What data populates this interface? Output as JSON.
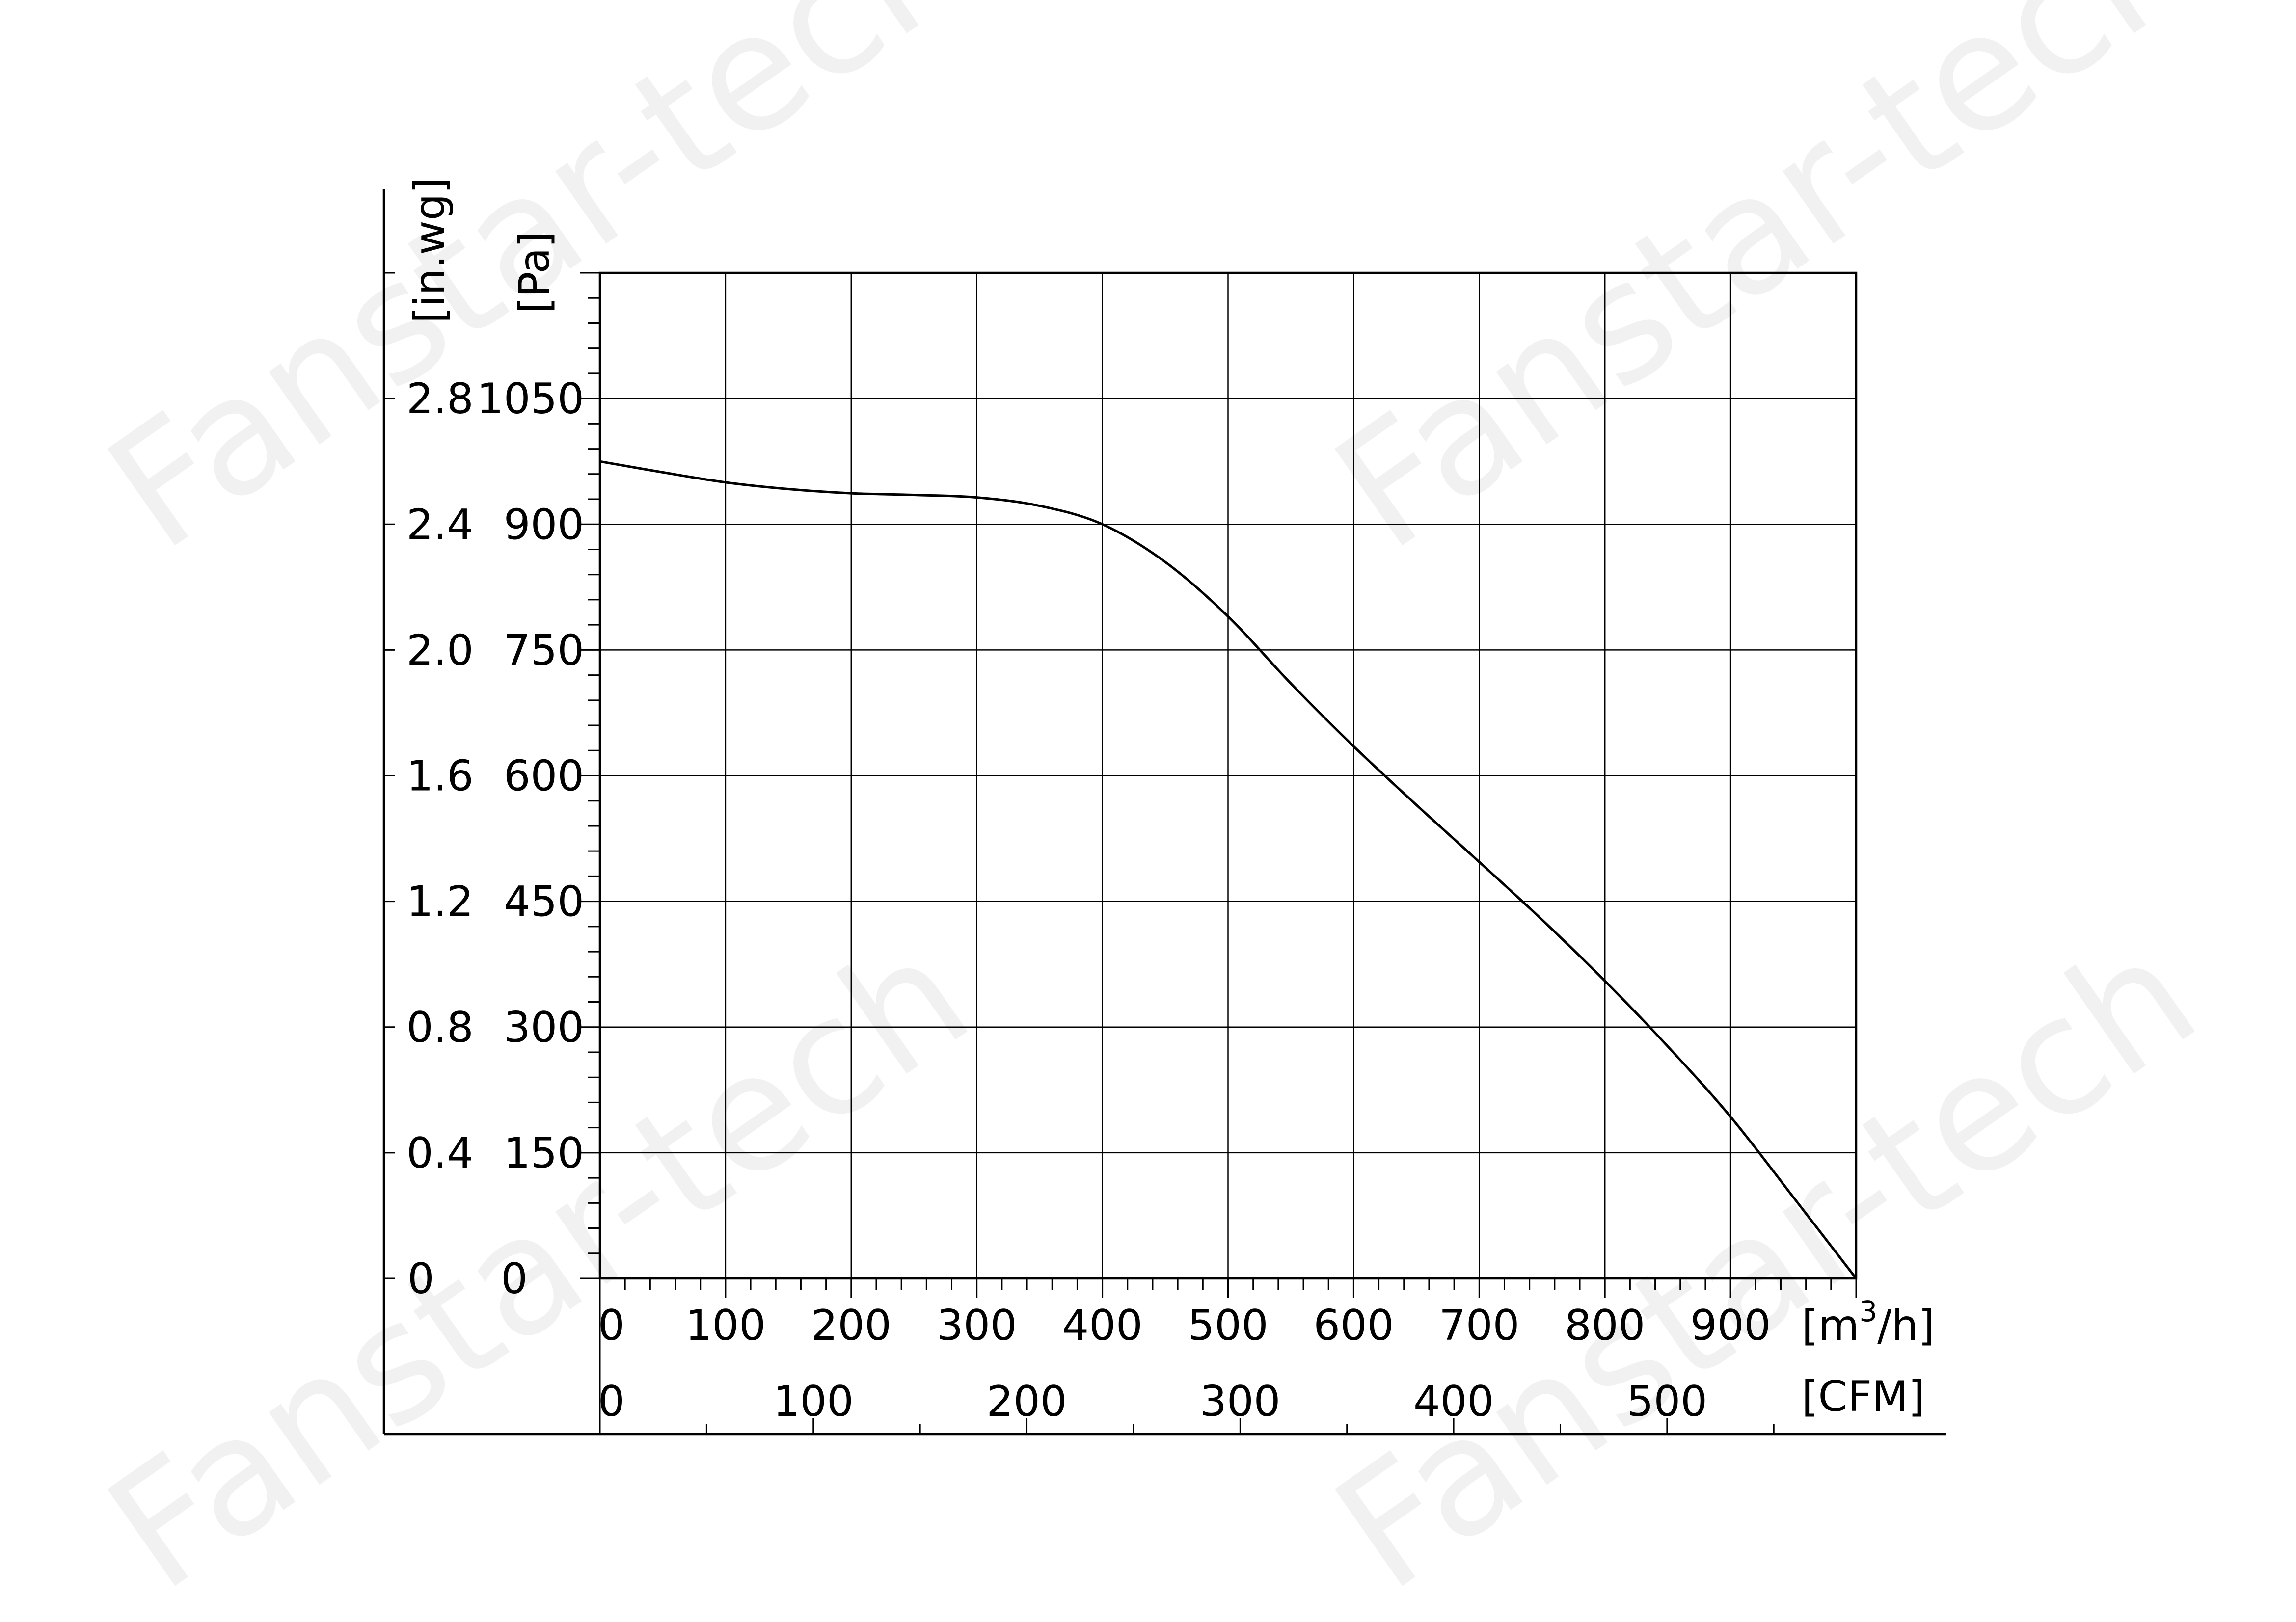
{
  "watermark": "Fanstar-tech",
  "chart_data": {
    "type": "line",
    "title": "",
    "x_unit_primary": "[m³/h]",
    "x_unit_primary_parts": {
      "base": "[m",
      "sup": "3",
      "tail": "/h]"
    },
    "x_unit_secondary": "[CFM]",
    "y_unit_primary": "[Pa]",
    "y_unit_secondary": "[in.wg]",
    "xlim": [
      0,
      1000
    ],
    "ylim": [
      0,
      1200
    ],
    "grid": true,
    "x_ticks_m3h": [
      "0",
      "100",
      "200",
      "300",
      "400",
      "500",
      "600",
      "700",
      "800",
      "900"
    ],
    "x_ticks_cfm": [
      "0",
      "100",
      "200",
      "300",
      "400",
      "500"
    ],
    "y_ticks_pa": [
      "0",
      "150",
      "300",
      "450",
      "600",
      "750",
      "900",
      "1050"
    ],
    "y_ticks_inwg": [
      "0",
      "0.4",
      "0.8",
      "1.2",
      "1.6",
      "2.0",
      "2.4",
      "2.8"
    ],
    "series": [
      {
        "x": [
          0,
          50,
          100,
          150,
          200,
          250,
          300,
          350,
          400,
          450,
          500,
          550,
          600,
          650,
          700,
          750,
          800,
          850,
          900,
          950,
          1000
        ],
        "y": [
          975,
          962,
          950,
          942,
          937,
          935,
          932,
          922,
          900,
          855,
          790,
          710,
          635,
          565,
          497,
          428,
          355,
          277,
          193,
          97,
          0
        ]
      }
    ]
  }
}
